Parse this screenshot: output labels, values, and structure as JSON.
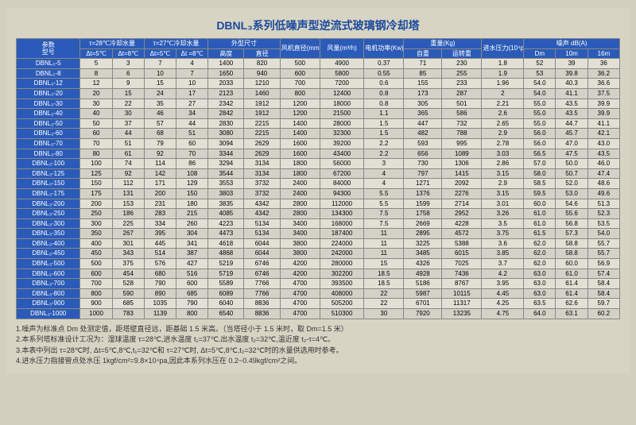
{
  "title": "DBNL₃系列低噪声型逆流式玻璃钢冷却塔",
  "header": {
    "param": "参数",
    "model": "型号",
    "t28": "τ=28℃冷却水量",
    "t27": "τ=27℃冷却水量",
    "dt5a": "Δt=5℃",
    "dt8a": "Δt=8℃",
    "dt5b": "Δt=5℃",
    "dt8b": "Δt =8℃",
    "size": "外型尺寸",
    "height": "高度",
    "diam": "直径",
    "fan": "风机直径(mm)",
    "air": "风量(m³/h)",
    "motor": "电机功率(Kw)",
    "weight": "重量(Kg)",
    "self": "自重",
    "run": "运转重",
    "press": "进水压力(10⁴pa)",
    "noise": "噪声 dB(A)",
    "dm": "Dm",
    "n10": "10m",
    "n16": "16m"
  },
  "rows": [
    {
      "m": "DBNL₃-5",
      "c": [
        "5",
        "3",
        "7",
        "4",
        "1400",
        "820",
        "500",
        "4900",
        "0.37",
        "71",
        "230",
        "1.8",
        "52",
        "39",
        "36"
      ]
    },
    {
      "m": "DBNL₃-8",
      "c": [
        "8",
        "6",
        "10",
        "7",
        "1650",
        "940",
        "600",
        "5800",
        "0.55",
        "85",
        "255",
        "1.9",
        "53",
        "39.8",
        "36.2"
      ]
    },
    {
      "m": "DBNL₃-12",
      "c": [
        "12",
        "9",
        "15",
        "10",
        "2033",
        "1210",
        "700",
        "7200",
        "0.6",
        "155",
        "233",
        "1.96",
        "54.0",
        "40.3",
        "36.6"
      ]
    },
    {
      "m": "DBNL₃-20",
      "c": [
        "20",
        "15",
        "24",
        "17",
        "2123",
        "1460",
        "800",
        "12400",
        "0.8",
        "173",
        "287",
        "2",
        "54.0",
        "41.1",
        "37.5"
      ]
    },
    {
      "m": "DBNL₃-30",
      "c": [
        "30",
        "22",
        "35",
        "27",
        "2342",
        "1912",
        "1200",
        "18000",
        "0.8",
        "305",
        "501",
        "2.21",
        "55.0",
        "43.5",
        "39.9"
      ]
    },
    {
      "m": "DBNL₃-40",
      "c": [
        "40",
        "30",
        "46",
        "34",
        "2842",
        "1912",
        "1200",
        "21500",
        "1.1",
        "365",
        "586",
        "2.6",
        "55.0",
        "43.5",
        "39.9"
      ]
    },
    {
      "m": "DBNL₃-50",
      "c": [
        "50",
        "37",
        "57",
        "44",
        "2830",
        "2215",
        "1400",
        "28000",
        "1.5",
        "447",
        "732",
        "2.65",
        "55.0",
        "44.7",
        "41.1"
      ]
    },
    {
      "m": "DBNL₃-60",
      "c": [
        "60",
        "44",
        "68",
        "51",
        "3080",
        "2215",
        "1400",
        "32300",
        "1.5",
        "482",
        "788",
        "2.9",
        "56.0",
        "45.7",
        "42.1"
      ]
    },
    {
      "m": "DBNL₃-70",
      "c": [
        "70",
        "51",
        "79",
        "60",
        "3094",
        "2629",
        "1600",
        "39200",
        "2.2",
        "593",
        "995",
        "2.78",
        "56.0",
        "47.0",
        "43.0"
      ]
    },
    {
      "m": "DBNL₃-80",
      "c": [
        "80",
        "61",
        "92",
        "70",
        "3344",
        "2629",
        "1600",
        "43400",
        "2.2",
        "656",
        "1089",
        "3.03",
        "56.5",
        "47.5",
        "43.5"
      ]
    },
    {
      "m": "DBNL₃-100",
      "c": [
        "100",
        "74",
        "114",
        "86",
        "3294",
        "3134",
        "1800",
        "56000",
        "3",
        "730",
        "1306",
        "2.86",
        "57.0",
        "50.0",
        "46.0"
      ]
    },
    {
      "m": "DBNL₃-125",
      "c": [
        "125",
        "92",
        "142",
        "108",
        "3544",
        "3134",
        "1800",
        "67200",
        "4",
        "797",
        "1415",
        "3.15",
        "58.0",
        "50.7",
        "47.4"
      ]
    },
    {
      "m": "DBNL₃-150",
      "c": [
        "150",
        "112",
        "171",
        "129",
        "3553",
        "3732",
        "2400",
        "84000",
        "4",
        "1271",
        "2092",
        "2.9",
        "58.5",
        "52.0",
        "48.6"
      ]
    },
    {
      "m": "DBNL₃-175",
      "c": [
        "175",
        "131",
        "200",
        "150",
        "3803",
        "3732",
        "2400",
        "94300",
        "5.5",
        "1376",
        "2276",
        "3.15",
        "59.5",
        "53.0",
        "49.6"
      ]
    },
    {
      "m": "DBNL₃-200",
      "c": [
        "200",
        "153",
        "231",
        "180",
        "3835",
        "4342",
        "2800",
        "112000",
        "5.5",
        "1599",
        "2714",
        "3.01",
        "60.0",
        "54.6",
        "51.3"
      ]
    },
    {
      "m": "DBNL₃-250",
      "c": [
        "250",
        "186",
        "283",
        "215",
        "4085",
        "4342",
        "2800",
        "134300",
        "7.5",
        "1758",
        "2952",
        "3.26",
        "61.0",
        "55.6",
        "52.3"
      ]
    },
    {
      "m": "DBNL₃-300",
      "c": [
        "300",
        "225",
        "334",
        "260",
        "4223",
        "5134",
        "3400",
        "168000",
        "7.5",
        "2669",
        "4228",
        "3.5",
        "61.0",
        "56.8",
        "53.5"
      ]
    },
    {
      "m": "DBNL₃-350",
      "c": [
        "350",
        "267",
        "395",
        "304",
        "4473",
        "5134",
        "3400",
        "187400",
        "11",
        "2895",
        "4572",
        "3.75",
        "61.5",
        "57.3",
        "54.0"
      ]
    },
    {
      "m": "DBNL₃-400",
      "c": [
        "400",
        "301",
        "445",
        "341",
        "4618",
        "6044",
        "3800",
        "224000",
        "11",
        "3225",
        "5388",
        "3.6",
        "62.0",
        "58.8",
        "55.7"
      ]
    },
    {
      "m": "DBNL₃-450",
      "c": [
        "450",
        "343",
        "514",
        "387",
        "4868",
        "6044",
        "3800",
        "242000",
        "11",
        "3485",
        "6015",
        "3.85",
        "62.0",
        "58.8",
        "55.7"
      ]
    },
    {
      "m": "DBNL₃-500",
      "c": [
        "500",
        "375",
        "576",
        "427",
        "5219",
        "6746",
        "4200",
        "280000",
        "15",
        "4326",
        "7025",
        "3.7",
        "62.0",
        "60.0",
        "56.9"
      ]
    },
    {
      "m": "DBNL₃-600",
      "c": [
        "600",
        "454",
        "680",
        "516",
        "5719",
        "6746",
        "4200",
        "302200",
        "18.5",
        "4928",
        "7436",
        "4.2",
        "63.0",
        "61.0",
        "57.4"
      ]
    },
    {
      "m": "DBNL₃-700",
      "c": [
        "700",
        "528",
        "790",
        "600",
        "5589",
        "7766",
        "4700",
        "393500",
        "18.5",
        "5186",
        "8767",
        "3.95",
        "63.0",
        "61.4",
        "58.4"
      ]
    },
    {
      "m": "DBNL₃-800",
      "c": [
        "800",
        "590",
        "890",
        "685",
        "6089",
        "7766",
        "4700",
        "408000",
        "22",
        "5987",
        "10115",
        "4.45",
        "63.0",
        "61.4",
        "58.4"
      ]
    },
    {
      "m": "DBNL₃-900",
      "c": [
        "900",
        "685",
        "1035",
        "790",
        "6040",
        "8836",
        "4700",
        "505200",
        "22",
        "6701",
        "11317",
        "4.25",
        "63.5",
        "62.6",
        "59.7"
      ]
    },
    {
      "m": "DBNL₃-1000",
      "c": [
        "1000",
        "783",
        "1139",
        "800",
        "6540",
        "8836",
        "4700",
        "510300",
        "30",
        "7920",
        "13235",
        "4.75",
        "64.0",
        "63.1",
        "60.2"
      ]
    }
  ],
  "notes": [
    "1.噪声为标准点 Dm 处测定值，距塔壁直径远，距基础 1.5 米高。（当塔径小于 1.5 米时，取 Dm=1.5 米）",
    "2.本系列塔标准设计工况为：湿球温度 τ=28℃,进水温度 t₁=37℃,出水温度 t₂=32℃,温近度 t₂-τ=4℃。",
    "3.本表中列出 τ=28℃时, Δt=5℃,8℃,t₁=32℃和 τ=27℃时, Δt=5℃,8℃,t₂=32℃时的水量供选用时参考。",
    "4.进水压力指接管点处水压 1kgf/cm²=9.8×10⁴pa,因此本系列水压在 0.2~0.49kgf/cm²之间。"
  ]
}
